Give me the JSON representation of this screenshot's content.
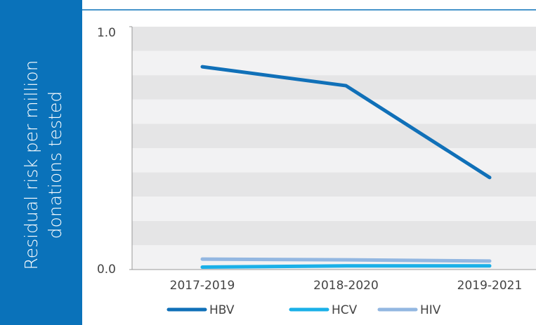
{
  "chart_data": {
    "type": "line",
    "ylabel": "Residual risk per million donations tested",
    "categories": [
      "2017-2019",
      "2018-2020",
      "2019-2021"
    ],
    "series": [
      {
        "name": "HBV",
        "color": "#1070b8",
        "values": [
          0.835,
          0.757,
          0.379
        ]
      },
      {
        "name": "HCV",
        "color": "#1ab0e8",
        "values": [
          0.01,
          0.015,
          0.015
        ]
      },
      {
        "name": "HIV",
        "color": "#93b7e1",
        "values": [
          0.043,
          0.04,
          0.035
        ]
      }
    ],
    "ylim": [
      0,
      1
    ],
    "yticks": [
      {
        "value": 0,
        "label": "0.0"
      },
      {
        "value": 1,
        "label": "1.0"
      }
    ],
    "legend": "bottom"
  }
}
